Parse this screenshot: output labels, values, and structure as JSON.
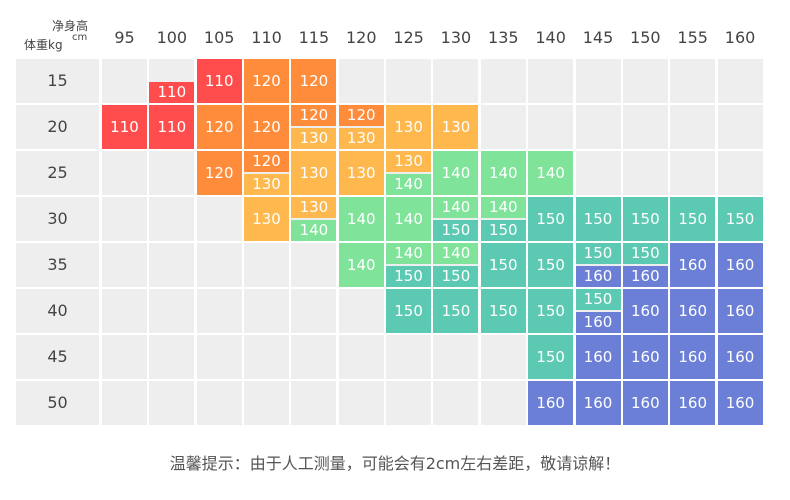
{
  "chart_data": {
    "type": "table",
    "corner": {
      "top_label": "净身高",
      "top_unit": "cm",
      "bottom_label": "体重kg"
    },
    "heights": [
      "95",
      "100",
      "105",
      "110",
      "115",
      "120",
      "125",
      "130",
      "135",
      "140",
      "145",
      "150",
      "155",
      "160"
    ],
    "weights": [
      "15",
      "20",
      "25",
      "30",
      "35",
      "40",
      "45",
      "50"
    ],
    "cells": [
      {
        "r": 0,
        "c": 1,
        "vals": [
          "110"
        ],
        "sub": "bottom"
      },
      {
        "r": 0,
        "c": 2,
        "vals": [
          "110"
        ]
      },
      {
        "r": 0,
        "c": 3,
        "vals": [
          "120"
        ]
      },
      {
        "r": 0,
        "c": 4,
        "vals": [
          "120"
        ]
      },
      {
        "r": 1,
        "c": 0,
        "vals": [
          "110"
        ]
      },
      {
        "r": 1,
        "c": 1,
        "vals": [
          "110"
        ]
      },
      {
        "r": 1,
        "c": 2,
        "vals": [
          "120"
        ]
      },
      {
        "r": 1,
        "c": 3,
        "vals": [
          "120"
        ]
      },
      {
        "r": 1,
        "c": 4,
        "vals": [
          "120",
          "130"
        ]
      },
      {
        "r": 1,
        "c": 5,
        "vals": [
          "120",
          "130"
        ]
      },
      {
        "r": 1,
        "c": 6,
        "vals": [
          "130"
        ]
      },
      {
        "r": 1,
        "c": 7,
        "vals": [
          "130"
        ]
      },
      {
        "r": 2,
        "c": 2,
        "vals": [
          "120"
        ]
      },
      {
        "r": 2,
        "c": 3,
        "vals": [
          "120",
          "130"
        ]
      },
      {
        "r": 2,
        "c": 4,
        "vals": [
          "130"
        ]
      },
      {
        "r": 2,
        "c": 5,
        "vals": [
          "130"
        ]
      },
      {
        "r": 2,
        "c": 6,
        "vals": [
          "130",
          "140"
        ]
      },
      {
        "r": 2,
        "c": 7,
        "vals": [
          "140"
        ]
      },
      {
        "r": 2,
        "c": 8,
        "vals": [
          "140"
        ]
      },
      {
        "r": 2,
        "c": 9,
        "vals": [
          "140"
        ]
      },
      {
        "r": 3,
        "c": 3,
        "vals": [
          "130"
        ]
      },
      {
        "r": 3,
        "c": 4,
        "vals": [
          "130",
          "140"
        ]
      },
      {
        "r": 3,
        "c": 5,
        "vals": [
          "140"
        ]
      },
      {
        "r": 3,
        "c": 6,
        "vals": [
          "140"
        ]
      },
      {
        "r": 3,
        "c": 7,
        "vals": [
          "140",
          "150"
        ]
      },
      {
        "r": 3,
        "c": 8,
        "vals": [
          "140",
          "150"
        ]
      },
      {
        "r": 3,
        "c": 9,
        "vals": [
          "150"
        ]
      },
      {
        "r": 3,
        "c": 10,
        "vals": [
          "150"
        ]
      },
      {
        "r": 3,
        "c": 11,
        "vals": [
          "150"
        ]
      },
      {
        "r": 3,
        "c": 12,
        "vals": [
          "150"
        ]
      },
      {
        "r": 3,
        "c": 13,
        "vals": [
          "150"
        ]
      },
      {
        "r": 4,
        "c": 5,
        "vals": [
          "140"
        ]
      },
      {
        "r": 4,
        "c": 6,
        "vals": [
          "140",
          "150"
        ]
      },
      {
        "r": 4,
        "c": 7,
        "vals": [
          "140",
          "150"
        ]
      },
      {
        "r": 4,
        "c": 8,
        "vals": [
          "150"
        ]
      },
      {
        "r": 4,
        "c": 9,
        "vals": [
          "150"
        ]
      },
      {
        "r": 4,
        "c": 10,
        "vals": [
          "150",
          "160"
        ]
      },
      {
        "r": 4,
        "c": 11,
        "vals": [
          "150",
          "160"
        ]
      },
      {
        "r": 4,
        "c": 12,
        "vals": [
          "160"
        ]
      },
      {
        "r": 4,
        "c": 13,
        "vals": [
          "160"
        ]
      },
      {
        "r": 5,
        "c": 6,
        "vals": [
          "150"
        ]
      },
      {
        "r": 5,
        "c": 7,
        "vals": [
          "150"
        ]
      },
      {
        "r": 5,
        "c": 8,
        "vals": [
          "150"
        ]
      },
      {
        "r": 5,
        "c": 9,
        "vals": [
          "150"
        ]
      },
      {
        "r": 5,
        "c": 10,
        "vals": [
          "150",
          "160"
        ]
      },
      {
        "r": 5,
        "c": 11,
        "vals": [
          "160"
        ]
      },
      {
        "r": 5,
        "c": 12,
        "vals": [
          "160"
        ]
      },
      {
        "r": 5,
        "c": 13,
        "vals": [
          "160"
        ]
      },
      {
        "r": 6,
        "c": 9,
        "vals": [
          "150"
        ]
      },
      {
        "r": 6,
        "c": 10,
        "vals": [
          "160"
        ]
      },
      {
        "r": 6,
        "c": 11,
        "vals": [
          "160"
        ]
      },
      {
        "r": 6,
        "c": 12,
        "vals": [
          "160"
        ]
      },
      {
        "r": 6,
        "c": 13,
        "vals": [
          "160"
        ]
      },
      {
        "r": 7,
        "c": 9,
        "vals": [
          "160"
        ]
      },
      {
        "r": 7,
        "c": 10,
        "vals": [
          "160"
        ]
      },
      {
        "r": 7,
        "c": 11,
        "vals": [
          "160"
        ]
      },
      {
        "r": 7,
        "c": 12,
        "vals": [
          "160"
        ]
      },
      {
        "r": 7,
        "c": 13,
        "vals": [
          "160"
        ]
      }
    ]
  },
  "colors": {
    "110": "#ff4d4d",
    "120": "#ff8c3a",
    "130": "#ffb84d",
    "140": "#7fe39a",
    "150": "#5cc9b2",
    "160": "#6b7fd6",
    "empty": "#eeeeee"
  },
  "footer": {
    "note": "温馨提示：由于人工测量，可能会有2cm左右差距，敬请谅解！"
  }
}
